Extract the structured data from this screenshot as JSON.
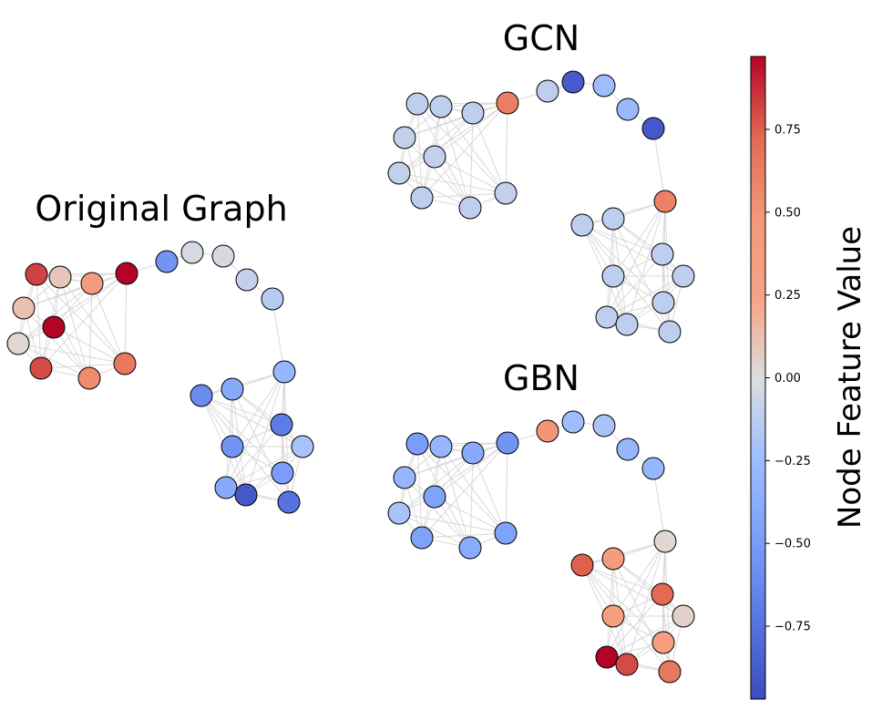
{
  "panels": [
    {
      "id": "original",
      "title": "Original Graph",
      "node_values": [
        0.82,
        0.1,
        0.4,
        0.97,
        0.12,
        0.97,
        0.03,
        0.8,
        0.55,
        0.65,
        -0.03,
        -0.03,
        -0.1,
        -0.15,
        -0.3,
        -0.4,
        -0.6,
        -0.7,
        -0.55,
        -0.2,
        -0.5,
        -0.4,
        -0.9,
        -0.75,
        -0.55
      ]
    },
    {
      "id": "gcn",
      "title": "GCN",
      "node_values": [
        -0.12,
        -0.12,
        -0.12,
        0.62,
        -0.1,
        -0.1,
        -0.1,
        -0.12,
        -0.12,
        -0.1,
        -0.88,
        -0.25,
        -0.28,
        -0.9,
        0.6,
        -0.12,
        -0.12,
        -0.12,
        -0.12,
        -0.12,
        -0.12,
        -0.12,
        -0.12,
        -0.12,
        -0.12
      ]
    },
    {
      "id": "gbn",
      "title": "GBN",
      "node_values": [
        -0.5,
        -0.3,
        -0.4,
        -0.55,
        -0.3,
        -0.45,
        -0.2,
        -0.45,
        -0.38,
        -0.45,
        -0.25,
        -0.2,
        -0.3,
        -0.3,
        0.03,
        0.4,
        0.75,
        0.72,
        0.35,
        0.05,
        0.35,
        0.97,
        0.8,
        0.65,
        0.5
      ]
    }
  ],
  "colorbar": {
    "label": "Node Feature Value",
    "colormap": "coolwarm",
    "vmin": -0.97,
    "vmax": 0.97,
    "ticks": [
      {
        "value": 0.75,
        "label": "0.75"
      },
      {
        "value": 0.5,
        "label": "0.50"
      },
      {
        "value": 0.25,
        "label": "0.25"
      },
      {
        "value": 0.0,
        "label": "0.00"
      },
      {
        "value": -0.25,
        "label": "−0.25"
      },
      {
        "value": -0.5,
        "label": "−0.50"
      },
      {
        "value": -0.75,
        "label": "−0.75"
      }
    ]
  },
  "colors": {
    "edge": "#d9d9d9",
    "node_outline": "#000000"
  }
}
